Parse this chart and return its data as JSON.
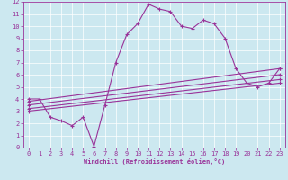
{
  "xlabel": "Windchill (Refroidissement éolien,°C)",
  "background_color": "#cce8f0",
  "line_color": "#993399",
  "xlim": [
    -0.5,
    23.5
  ],
  "ylim": [
    0,
    12
  ],
  "xticks": [
    0,
    1,
    2,
    3,
    4,
    5,
    6,
    7,
    8,
    9,
    10,
    11,
    12,
    13,
    14,
    15,
    16,
    17,
    18,
    19,
    20,
    21,
    22,
    23
  ],
  "yticks": [
    0,
    1,
    2,
    3,
    4,
    5,
    6,
    7,
    8,
    9,
    10,
    11,
    12
  ],
  "series1_x": [
    0,
    1,
    2,
    3,
    4,
    5,
    6,
    7,
    8,
    9,
    10,
    11,
    12,
    13,
    14,
    15,
    16,
    17,
    18,
    19,
    20,
    21,
    22,
    23
  ],
  "series1_y": [
    4.0,
    4.0,
    2.5,
    2.2,
    1.8,
    2.5,
    0.1,
    3.5,
    7.0,
    9.3,
    10.2,
    11.8,
    11.4,
    11.2,
    10.0,
    9.8,
    10.5,
    10.2,
    9.0,
    6.5,
    5.3,
    5.0,
    5.3,
    6.5
  ],
  "series2_x": [
    0,
    23
  ],
  "series2_y": [
    3.8,
    6.5
  ],
  "series3_x": [
    0,
    23
  ],
  "series3_y": [
    3.5,
    6.0
  ],
  "series4_x": [
    0,
    23
  ],
  "series4_y": [
    3.2,
    5.6
  ],
  "series5_x": [
    0,
    23
  ],
  "series5_y": [
    3.0,
    5.3
  ],
  "tick_fontsize": 5,
  "xlabel_fontsize": 5,
  "lw": 0.8,
  "marker_size": 3
}
